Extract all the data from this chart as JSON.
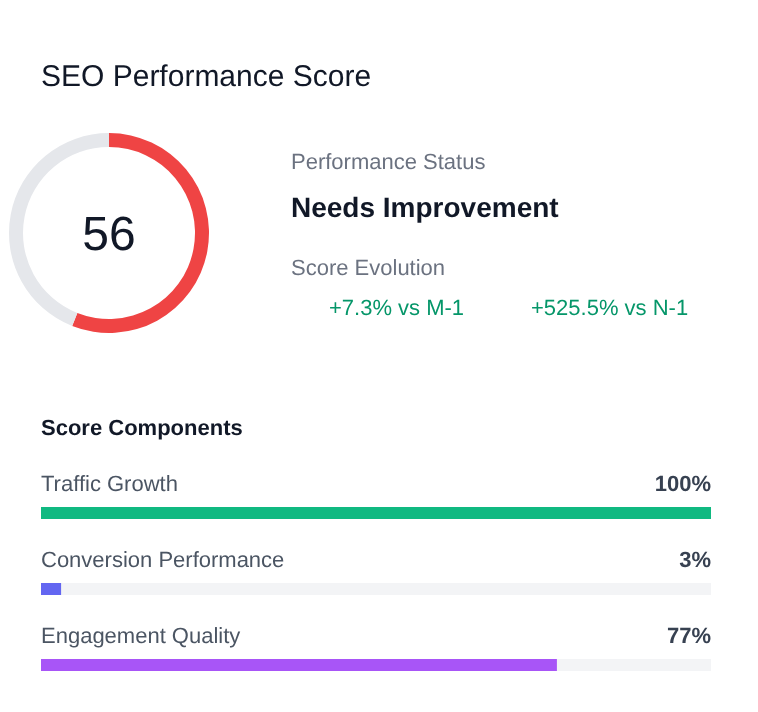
{
  "chart_data": [
    {
      "type": "donut",
      "title": "SEO Performance Score",
      "categories": [
        null,
        null
      ],
      "values": [
        56,
        44
      ],
      "colors": [
        "#ef4444",
        "#e5e7eb"
      ],
      "annotations": [
        "56",
        "Performance Status",
        "Needs Improvement",
        "Score Evolution",
        "+7.3% vs M-1",
        "+525.5% vs N-1"
      ]
    },
    {
      "type": "bar",
      "orientation": "horizontal",
      "title": "Score Components",
      "categories": [
        "Traffic Growth",
        "Conversion Performance",
        "Engagement Quality"
      ],
      "values": [
        100,
        3,
        77
      ],
      "colors": [
        "#10b981",
        "#6366f1",
        "#a855f7"
      ],
      "value_labels": [
        "100%",
        "3%",
        "77%"
      ],
      "xlim": [
        0,
        100
      ]
    }
  ]
}
